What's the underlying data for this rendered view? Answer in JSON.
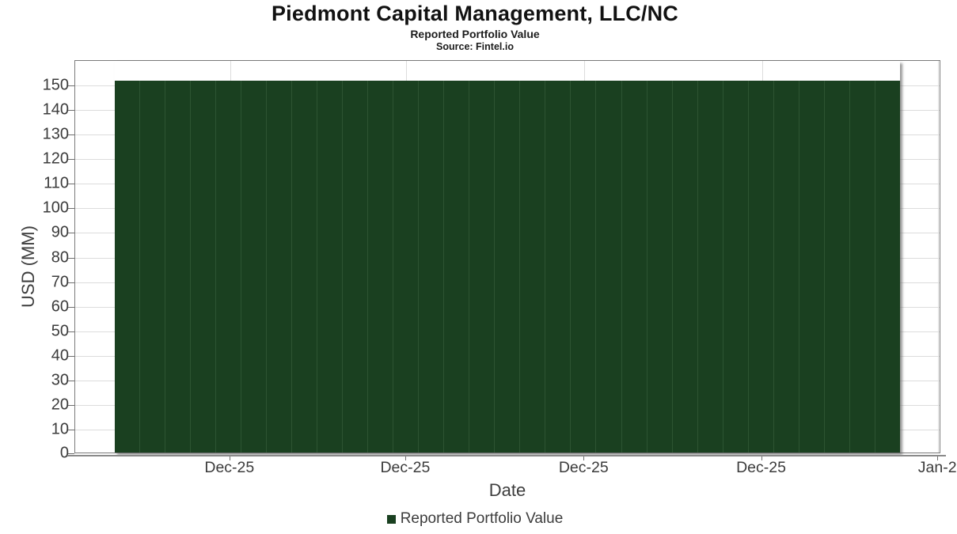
{
  "chart_data": {
    "type": "bar",
    "title": "Piedmont Capital Management, LLC/NC",
    "subtitle": "Reported Portfolio Value",
    "source": "Source: Fintel.io",
    "xlabel": "Date",
    "ylabel": "USD (MM)",
    "legend_position": "bottom",
    "grid": true,
    "ylim": [
      0,
      160
    ],
    "y_ticks": [
      0,
      10,
      20,
      30,
      40,
      50,
      60,
      70,
      80,
      90,
      100,
      110,
      120,
      130,
      140,
      150
    ],
    "x_ticks": [
      {
        "label": "Dec-25",
        "position_pct": 17.9
      },
      {
        "label": "Dec-25",
        "position_pct": 38.2
      },
      {
        "label": "Dec-25",
        "position_pct": 58.8
      },
      {
        "label": "Dec-25",
        "position_pct": 79.3
      },
      {
        "label": "Jan-2",
        "position_pct": 99.65
      }
    ],
    "bars_span_pct": [
      4.57,
      95.43
    ],
    "series": [
      {
        "name": "Reported Portfolio Value",
        "color": "#1a4020",
        "separator_color": "#2d5432",
        "values": [
          152,
          152,
          152,
          152,
          152,
          152,
          152,
          152,
          152,
          152,
          152,
          152,
          152,
          152,
          152,
          152,
          152,
          152,
          152,
          152,
          152,
          152,
          152,
          152,
          152,
          152,
          152,
          152,
          152,
          152,
          152
        ]
      }
    ]
  },
  "colors": {
    "background": "#ffffff",
    "grid": "#dcdcdc",
    "plot_border": "#7a7a7a",
    "axis_line": "#8a8a8a",
    "tick": "#6e6e6e",
    "tick_label": "#3b3b3b",
    "axis_title": "#3d3d3d",
    "title": "#121212"
  }
}
